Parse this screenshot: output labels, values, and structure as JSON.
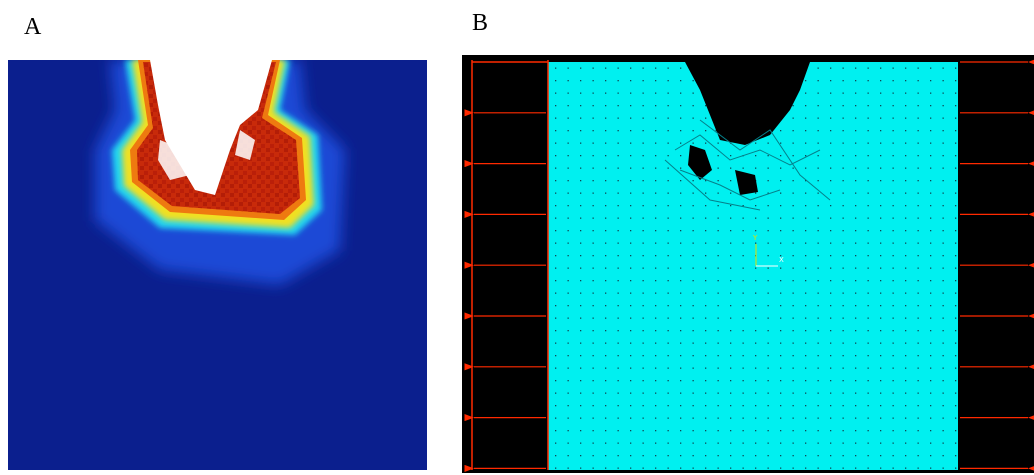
{
  "panels": [
    {
      "label": "A"
    },
    {
      "label": "B",
      "axis_labels": [
        "Y",
        "X"
      ]
    }
  ]
}
